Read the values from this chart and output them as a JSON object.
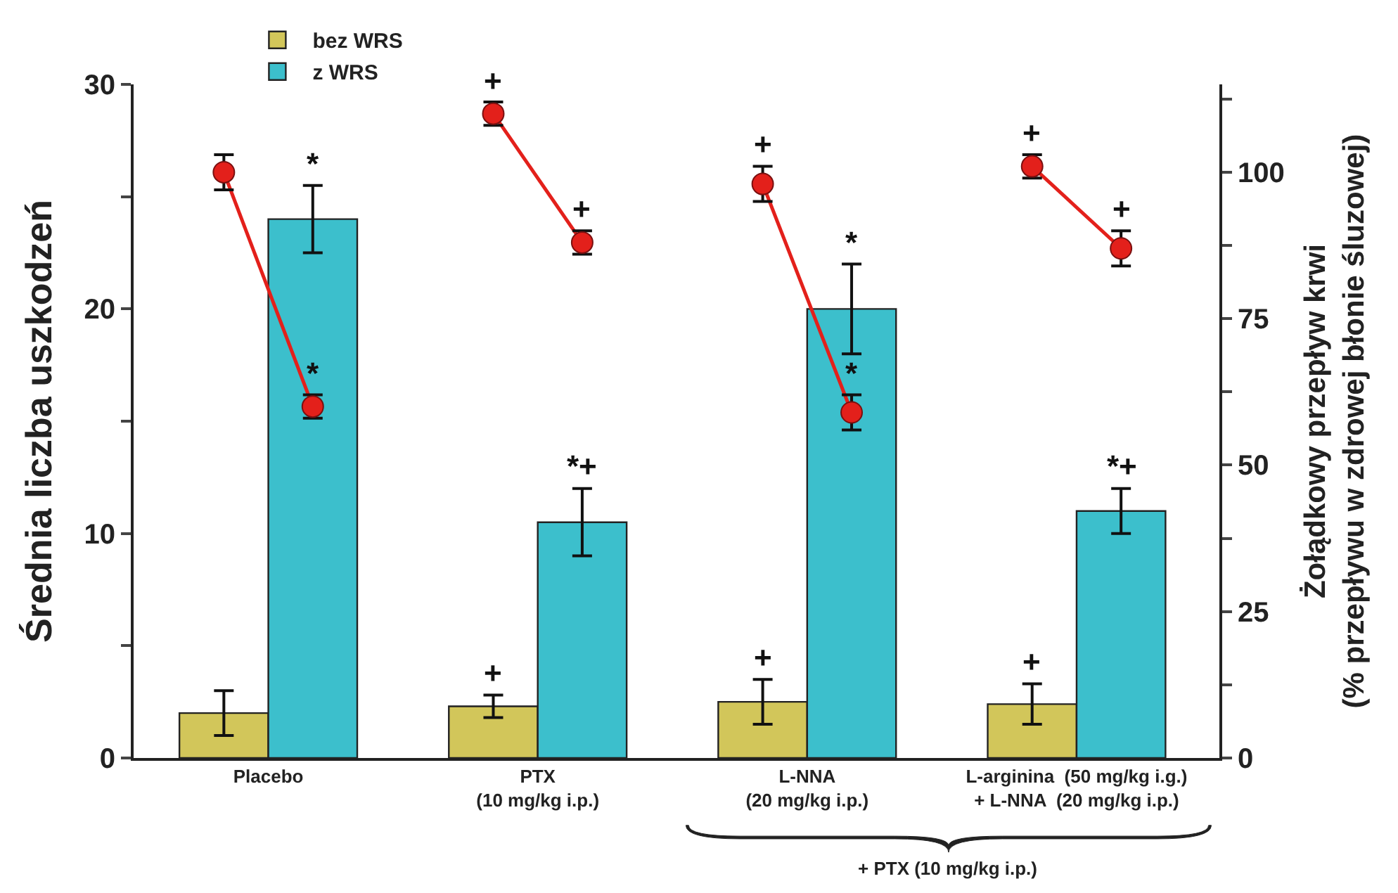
{
  "chart_data": {
    "type": "bar",
    "categories": [
      "Placebo",
      "PTX\n(10 mg/kg i.p.)",
      "L-NNA\n(20 mg/kg i.p.)",
      "L-arginina  (50 mg/kg i.g.)\n+ L-NNA  (20 mg/kg i.p.)"
    ],
    "series": [
      {
        "name": "bez WRS",
        "color": "#d2c65a",
        "values": [
          2.0,
          2.3,
          2.5,
          2.4
        ],
        "errors": [
          1.0,
          0.5,
          1.0,
          0.9
        ],
        "value_labels": [
          null,
          "+",
          "+",
          "+"
        ]
      },
      {
        "name": "z WRS",
        "color": "#3cbfcc",
        "values": [
          24,
          10.5,
          20,
          11
        ],
        "errors": [
          1.5,
          1.5,
          2,
          1
        ],
        "value_labels": [
          "*",
          "*+",
          "*",
          "*+"
        ]
      },
      {
        "type": "scatter",
        "axis": "y2",
        "color": "#e3201b",
        "values": [
          100,
          110,
          98,
          101
        ],
        "errors": [
          3,
          2,
          3,
          2
        ],
        "value_labels": [
          null,
          "+",
          "+",
          "+"
        ]
      },
      {
        "type": "scatter",
        "axis": "y2",
        "color": "#e3201b",
        "values": [
          60,
          88,
          59,
          87
        ],
        "errors": [
          2,
          2,
          3,
          3
        ],
        "value_labels": [
          "*",
          "+",
          "*",
          "+"
        ]
      }
    ],
    "ylabel": "Średnia liczba uszkodzeń",
    "y2label": "Żołądkowy przepływ krwi\n(% przepływu w zdrowej błonie śluzowej)",
    "annotations": [
      "+ PTX (10 mg/kg i.p.)"
    ],
    "ylim": [
      0,
      30
    ],
    "yticks": [
      0,
      {
        "value": 5,
        "label": null
      },
      10,
      {
        "value": 15,
        "label": null
      },
      20,
      {
        "value": 25,
        "label": null
      },
      30
    ],
    "y2lim": [
      0,
      115
    ],
    "y2ticks": [
      0,
      {
        "value": 12.5,
        "label": null
      },
      25,
      {
        "value": 37.5,
        "label": null
      },
      50,
      {
        "value": 62.5,
        "label": null
      },
      75,
      {
        "value": 87.5,
        "label": null
      },
      100,
      {
        "value": 112.5,
        "label": null
      }
    ],
    "legend": "top left",
    "marker": "circle",
    "line_style": "solid"
  }
}
